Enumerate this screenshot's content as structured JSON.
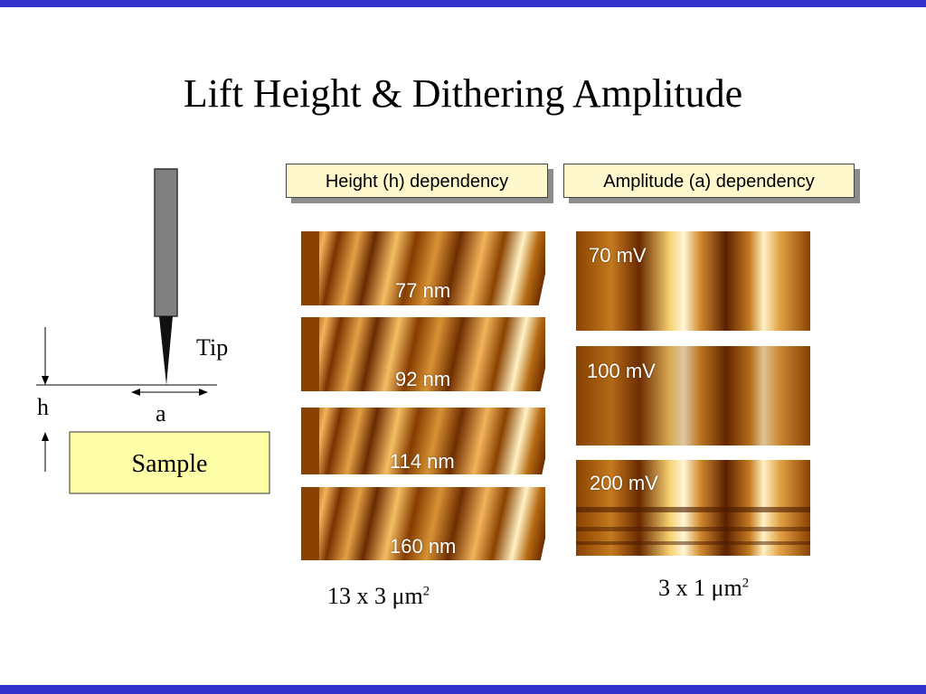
{
  "slide": {
    "title": "Lift Height & Dithering Amplitude",
    "accent_color": "#3333cc"
  },
  "diagram": {
    "tip_label": "Tip",
    "h_label": "h",
    "a_label": "a",
    "sample_label": "Sample"
  },
  "height_panel": {
    "header": "Height (h) dependency",
    "images": [
      {
        "label": "77 nm"
      },
      {
        "label": "92 nm"
      },
      {
        "label": "114 nm"
      },
      {
        "label": "160 nm"
      }
    ],
    "scale_prefix": "13 x 3 ",
    "scale_unit": "μm",
    "scale_exp": "2"
  },
  "amplitude_panel": {
    "header": "Amplitude (a) dependency",
    "images": [
      {
        "label": "70 mV"
      },
      {
        "label": "100 mV"
      },
      {
        "label": "200 mV"
      }
    ],
    "scale_prefix": "3 x 1 ",
    "scale_unit": "μm",
    "scale_exp": "2"
  }
}
